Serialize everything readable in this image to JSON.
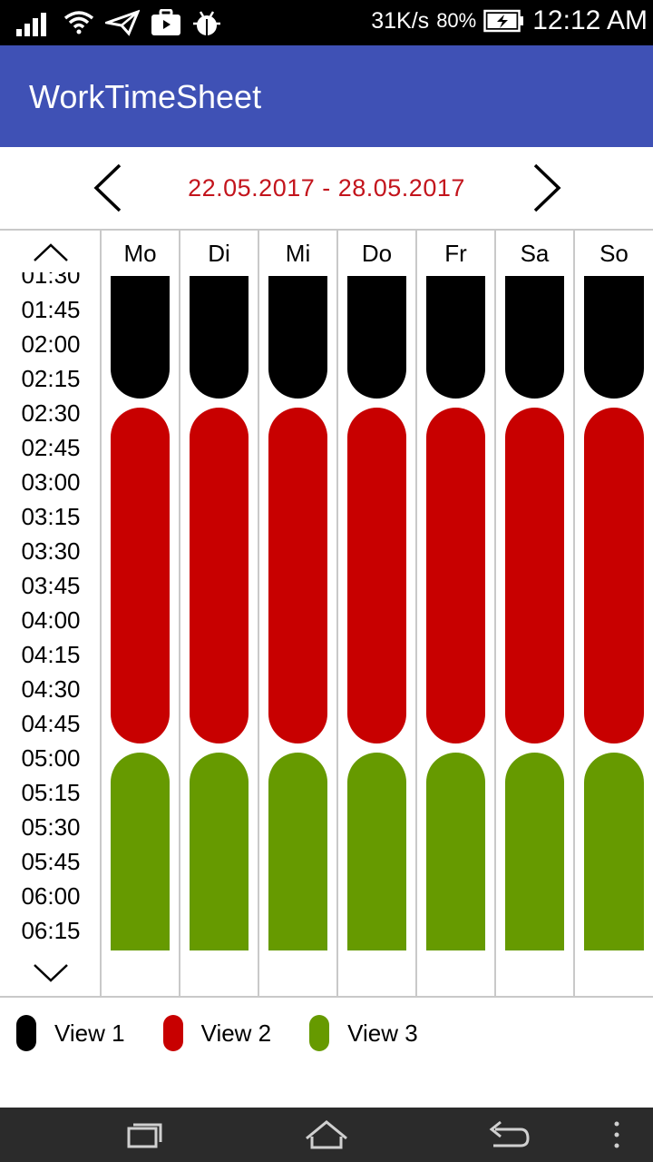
{
  "status_bar": {
    "net_speed": "31K/s",
    "battery_pct": "80%",
    "time": "12:12 AM",
    "icons": [
      "signal-icon",
      "wifi-icon",
      "send-icon",
      "briefcase-icon",
      "android-debug-icon",
      "battery-charging-icon"
    ]
  },
  "app_bar": {
    "title": "WorkTimeSheet"
  },
  "week_nav": {
    "range": "22.05.2017 - 28.05.2017",
    "prev_icon": "chevron-left-icon",
    "next_icon": "chevron-right-icon"
  },
  "time_column": {
    "up_icon": "chevron-up-icon",
    "down_icon": "chevron-down-icon",
    "labels": [
      "01:30",
      "01:45",
      "02:00",
      "02:15",
      "02:30",
      "02:45",
      "03:00",
      "03:15",
      "03:30",
      "03:45",
      "04:00",
      "04:15",
      "04:30",
      "04:45",
      "05:00",
      "05:15",
      "05:30",
      "05:45",
      "06:00",
      "06:15"
    ]
  },
  "days": [
    {
      "label": "Mo"
    },
    {
      "label": "Di"
    },
    {
      "label": "Mi"
    },
    {
      "label": "Do"
    },
    {
      "label": "Fr"
    },
    {
      "label": "Sa"
    },
    {
      "label": "So"
    }
  ],
  "legend": [
    {
      "label": "View 1",
      "color": "#000000"
    },
    {
      "label": "View 2",
      "color": "#c80000"
    },
    {
      "label": "View 3",
      "color": "#669a00"
    }
  ],
  "colors": {
    "app_bar": "#3f51b5",
    "week_range_text": "#c3141c",
    "view1": "#000000",
    "view2": "#c80000",
    "view3": "#669a00"
  },
  "nav_bar": {
    "icons": [
      "recent-apps-icon",
      "home-icon",
      "back-icon",
      "overflow-menu-icon"
    ]
  }
}
